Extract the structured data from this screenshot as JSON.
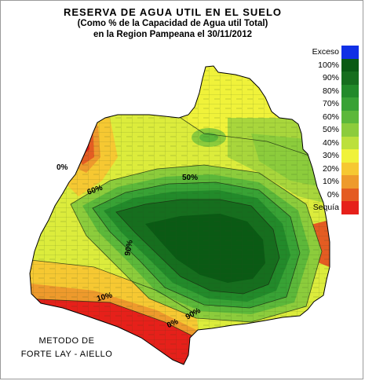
{
  "title": {
    "line1": "RESERVA DE AGUA UTIL EN EL SUELO",
    "line2": "(Como % de la Capacidad de Agua util Total)",
    "line3": "en la Region Pampeana el 30/11/2012"
  },
  "legend": {
    "items": [
      {
        "label": "Exceso",
        "color": "#1030e6"
      },
      {
        "label": "100%",
        "color": "#0a5a14"
      },
      {
        "label": "90%",
        "color": "#166e1e"
      },
      {
        "label": "80%",
        "color": "#228a2a"
      },
      {
        "label": "70%",
        "color": "#38a235"
      },
      {
        "label": "60%",
        "color": "#5cb83a"
      },
      {
        "label": "50%",
        "color": "#8ccc3c"
      },
      {
        "label": "40%",
        "color": "#bce03c"
      },
      {
        "label": "30%",
        "color": "#f0f23a"
      },
      {
        "label": "20%",
        "color": "#f6c832"
      },
      {
        "label": "10%",
        "color": "#ee9a2c"
      },
      {
        "label": "0%",
        "color": "#e45c22"
      },
      {
        "label": "Sequía",
        "color": "#e6201a"
      }
    ]
  },
  "map_labels": {
    "label_0": "0%",
    "label_50": "50%",
    "label_60": "60%",
    "label_90a": "90%",
    "label_90b": "90%",
    "label_10": "10%",
    "label_0b": "0%"
  },
  "method": {
    "line1": "METODO DE",
    "line2": "FORTE LAY - AIELLO"
  }
}
